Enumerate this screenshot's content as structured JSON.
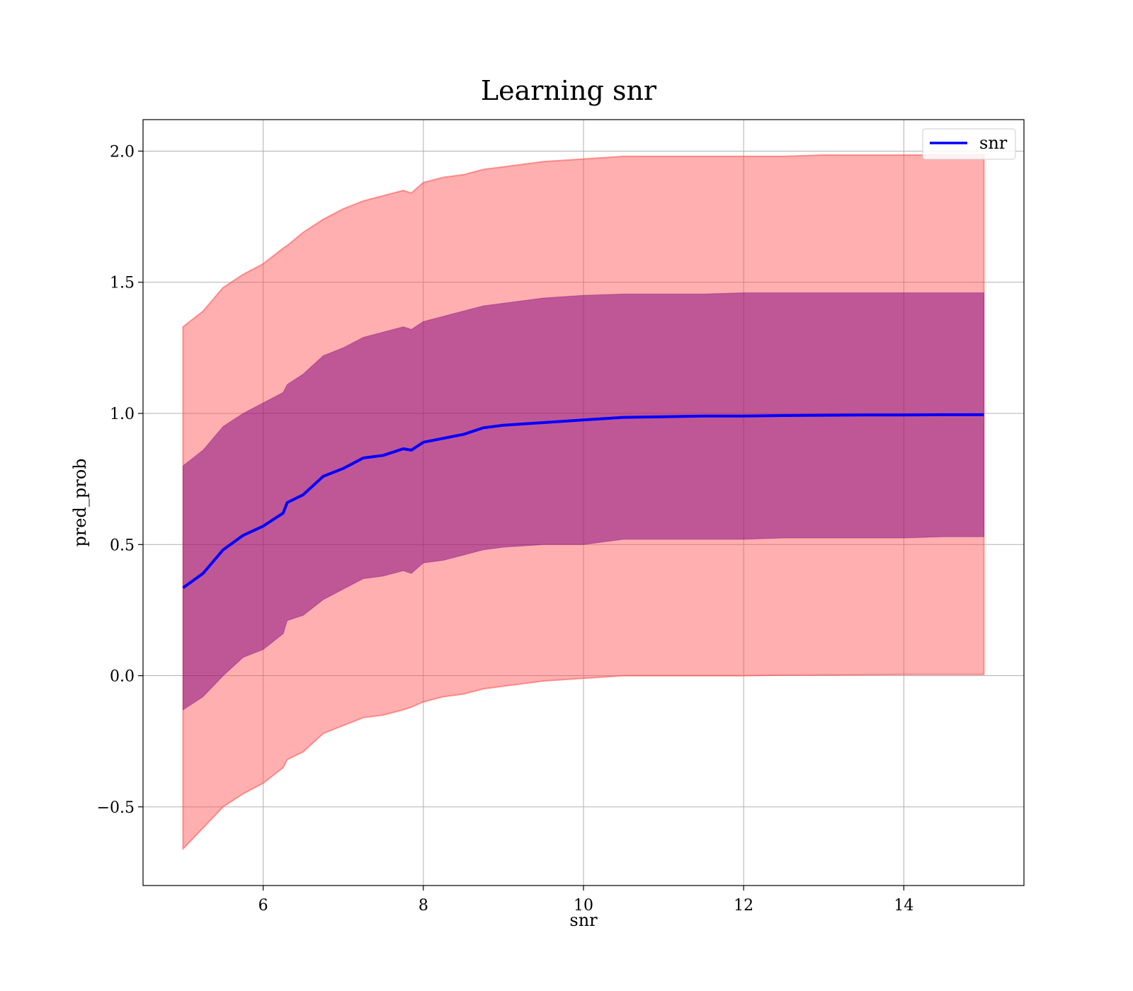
{
  "chart_data": {
    "type": "area",
    "title": "Learning snr",
    "xlabel": "snr",
    "ylabel": "pred_prob",
    "xlim": [
      4.5,
      15.5
    ],
    "ylim": [
      -0.8,
      2.12
    ],
    "xticks": [
      6,
      8,
      10,
      12,
      14
    ],
    "xtick_labels": [
      "6",
      "8",
      "10",
      "12",
      "14"
    ],
    "yticks": [
      -0.5,
      0.0,
      0.5,
      1.0,
      1.5,
      2.0
    ],
    "ytick_labels": [
      "−0.5",
      "0.0",
      "0.5",
      "1.0",
      "1.5",
      "2.0"
    ],
    "grid": true,
    "legend": {
      "placement": "top-right",
      "entries": [
        "snr"
      ]
    },
    "x": [
      5.0,
      5.25,
      5.5,
      5.75,
      6.0,
      6.25,
      6.3,
      6.5,
      6.75,
      7.0,
      7.25,
      7.5,
      7.75,
      7.85,
      8.0,
      8.25,
      8.5,
      8.75,
      9.0,
      9.5,
      10.0,
      10.5,
      11.0,
      11.5,
      12.0,
      12.5,
      13.0,
      13.5,
      14.0,
      14.5,
      15.0
    ],
    "series": [
      {
        "name": "snr",
        "role": "mean",
        "color": "#0000ff",
        "values": [
          0.335,
          0.39,
          0.48,
          0.535,
          0.57,
          0.62,
          0.66,
          0.69,
          0.76,
          0.79,
          0.83,
          0.84,
          0.865,
          0.86,
          0.89,
          0.905,
          0.92,
          0.945,
          0.955,
          0.965,
          0.975,
          0.985,
          0.987,
          0.99,
          0.99,
          0.992,
          0.993,
          0.994,
          0.994,
          0.995,
          0.995
        ]
      },
      {
        "role": "inner_band_upper",
        "color": "#800080",
        "values": [
          0.8,
          0.86,
          0.95,
          1.0,
          1.04,
          1.08,
          1.11,
          1.15,
          1.22,
          1.25,
          1.29,
          1.31,
          1.33,
          1.32,
          1.35,
          1.37,
          1.39,
          1.41,
          1.42,
          1.44,
          1.45,
          1.455,
          1.455,
          1.455,
          1.46,
          1.46,
          1.46,
          1.46,
          1.46,
          1.46,
          1.46
        ]
      },
      {
        "role": "inner_band_lower",
        "color": "#800080",
        "values": [
          -0.13,
          -0.08,
          0.0,
          0.07,
          0.1,
          0.16,
          0.21,
          0.23,
          0.29,
          0.33,
          0.37,
          0.38,
          0.4,
          0.39,
          0.43,
          0.44,
          0.46,
          0.48,
          0.49,
          0.5,
          0.5,
          0.52,
          0.52,
          0.52,
          0.52,
          0.525,
          0.525,
          0.525,
          0.525,
          0.53,
          0.53
        ]
      },
      {
        "role": "outer_band_upper",
        "color": "#ff4d4d",
        "values": [
          1.33,
          1.39,
          1.48,
          1.53,
          1.57,
          1.63,
          1.64,
          1.69,
          1.74,
          1.78,
          1.81,
          1.83,
          1.85,
          1.84,
          1.88,
          1.9,
          1.91,
          1.93,
          1.94,
          1.96,
          1.97,
          1.98,
          1.98,
          1.98,
          1.98,
          1.98,
          1.985,
          1.985,
          1.985,
          1.985,
          1.985
        ]
      },
      {
        "role": "outer_band_lower",
        "color": "#ff4d4d",
        "values": [
          -0.66,
          -0.58,
          -0.5,
          -0.45,
          -0.41,
          -0.35,
          -0.32,
          -0.29,
          -0.22,
          -0.19,
          -0.16,
          -0.15,
          -0.13,
          -0.12,
          -0.1,
          -0.08,
          -0.07,
          -0.05,
          -0.04,
          -0.02,
          -0.01,
          0.0,
          0.0,
          0.0,
          0.0,
          0.002,
          0.003,
          0.004,
          0.005,
          0.005,
          0.005
        ]
      }
    ]
  }
}
